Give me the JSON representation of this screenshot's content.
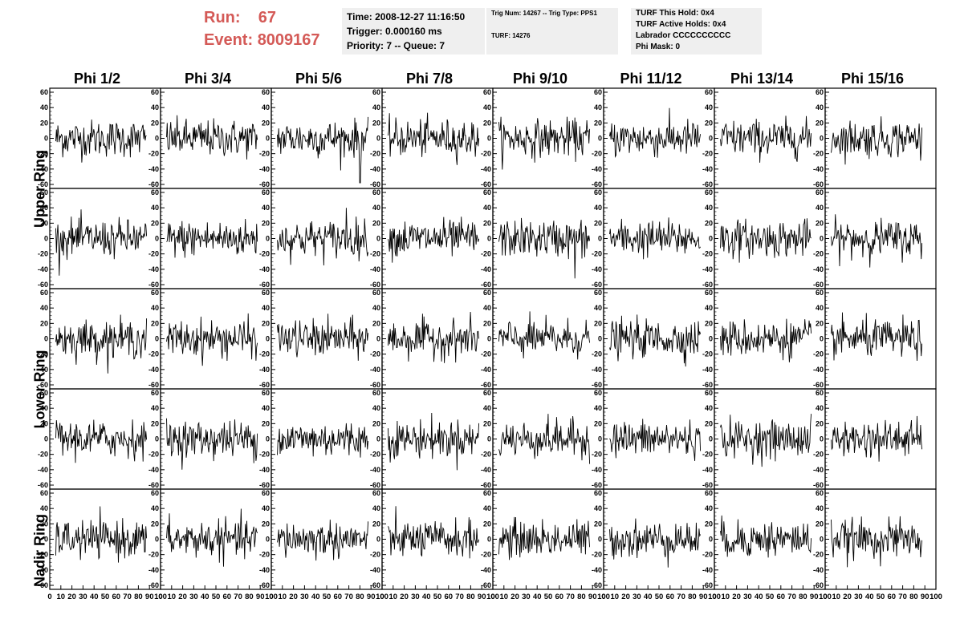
{
  "header": {
    "run_label": "Run:",
    "run_value": "67",
    "event_label": "Event:",
    "event_value": "8009167"
  },
  "time_box": {
    "time": "Time: 2008-12-27 11:16:50",
    "trigger": "Trigger: 0.000160 ms",
    "priority": "Priority: 7 -- Queue: 7"
  },
  "trig_box": {
    "trig": "Trig Num: 14267 -- Trig Type: PPS1",
    "turf": "TURF: 14276"
  },
  "turf_box": {
    "this_hold": "TURF This Hold: 0x4",
    "active_holds": "TURF Active Holds: 0x4",
    "labrador": "Labrador CCCCCCCCCC",
    "phi_mask": "Phi Mask: 0"
  },
  "columns": [
    "Phi 1/2",
    "Phi 3/4",
    "Phi 5/6",
    "Phi 7/8",
    "Phi 9/10",
    "Phi 11/12",
    "Phi 13/14",
    "Phi 15/16"
  ],
  "rows": [
    "Upper Ring",
    "Lower Ring",
    "Nadir Ring"
  ],
  "chart_data": {
    "type": "line",
    "panel_rows": 5,
    "panel_cols": 8,
    "ylim": [
      -60,
      60
    ],
    "yticks": [
      -60,
      -40,
      -20,
      0,
      20,
      40,
      60
    ],
    "xlim": [
      0,
      100
    ],
    "xtick_labels": [
      "0",
      "10",
      "20",
      "30",
      "40",
      "50",
      "60",
      "70",
      "80",
      "90",
      "100"
    ],
    "samples_per_trace": 130,
    "noise_rms_approx": 12,
    "notable_spikes": [
      {
        "panel": "row1-Phi 5/6",
        "x": 86,
        "y": -58
      },
      {
        "panel": "row2-Phi 9/10",
        "x": 79,
        "y": -52
      },
      {
        "panel": "row2-Phi 5/6",
        "x": 72,
        "y": 40
      }
    ]
  }
}
